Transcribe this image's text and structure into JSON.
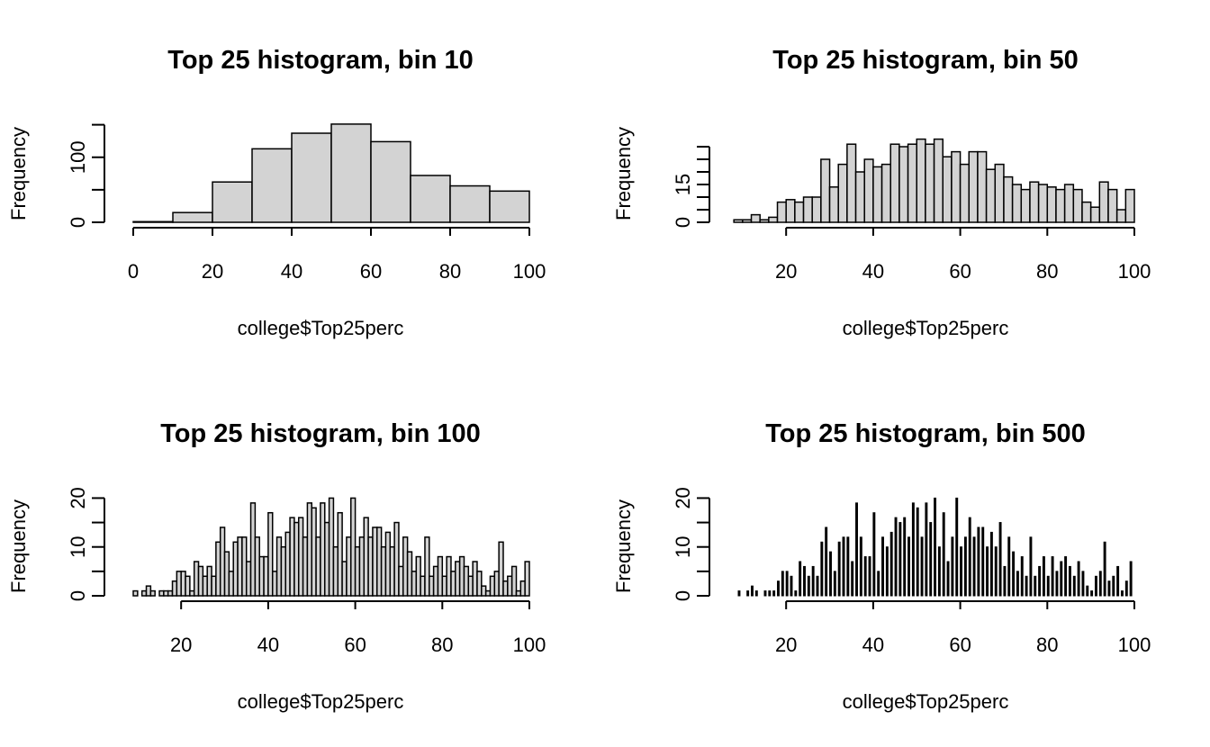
{
  "chart_data": [
    {
      "type": "bar",
      "title": "Top 25 histogram, bin 10",
      "xlabel": "college$Top25perc",
      "ylabel": "Frequency",
      "xlim": [
        0,
        100
      ],
      "ylim": [
        0,
        155
      ],
      "xticks": [
        0,
        20,
        40,
        60,
        80,
        100
      ],
      "yticks": [
        0,
        100
      ],
      "yminor": [
        50,
        150
      ],
      "bins": [
        {
          "x0": 0,
          "x1": 10,
          "count": 1
        },
        {
          "x0": 10,
          "x1": 20,
          "count": 15
        },
        {
          "x0": 20,
          "x1": 30,
          "count": 62
        },
        {
          "x0": 30,
          "x1": 40,
          "count": 113
        },
        {
          "x0": 40,
          "x1": 50,
          "count": 137
        },
        {
          "x0": 50,
          "x1": 60,
          "count": 151
        },
        {
          "x0": 60,
          "x1": 70,
          "count": 124
        },
        {
          "x0": 70,
          "x1": 80,
          "count": 72
        },
        {
          "x0": 80,
          "x1": 90,
          "count": 56
        },
        {
          "x0": 90,
          "x1": 100,
          "count": 48
        }
      ]
    },
    {
      "type": "bar",
      "title": "Top 25 histogram, bin 50",
      "xlabel": "college$Top25perc",
      "ylabel": "Frequency",
      "xlim": [
        9,
        100
      ],
      "ylim": [
        0,
        40
      ],
      "xticks": [
        20,
        40,
        60,
        80,
        100
      ],
      "yticks": [
        0,
        15
      ],
      "yminor": [
        5,
        10,
        20,
        25,
        30
      ],
      "bins": [
        {
          "x0": 8,
          "x1": 10,
          "count": 1
        },
        {
          "x0": 10,
          "x1": 12,
          "count": 1
        },
        {
          "x0": 12,
          "x1": 14,
          "count": 3
        },
        {
          "x0": 14,
          "x1": 16,
          "count": 1
        },
        {
          "x0": 16,
          "x1": 18,
          "count": 2
        },
        {
          "x0": 18,
          "x1": 20,
          "count": 8
        },
        {
          "x0": 20,
          "x1": 22,
          "count": 9
        },
        {
          "x0": 22,
          "x1": 24,
          "count": 8
        },
        {
          "x0": 24,
          "x1": 26,
          "count": 10
        },
        {
          "x0": 26,
          "x1": 28,
          "count": 10
        },
        {
          "x0": 28,
          "x1": 30,
          "count": 25
        },
        {
          "x0": 30,
          "x1": 32,
          "count": 14
        },
        {
          "x0": 32,
          "x1": 34,
          "count": 23
        },
        {
          "x0": 34,
          "x1": 36,
          "count": 31
        },
        {
          "x0": 36,
          "x1": 38,
          "count": 20
        },
        {
          "x0": 38,
          "x1": 40,
          "count": 25
        },
        {
          "x0": 40,
          "x1": 42,
          "count": 22
        },
        {
          "x0": 42,
          "x1": 44,
          "count": 23
        },
        {
          "x0": 44,
          "x1": 46,
          "count": 31
        },
        {
          "x0": 46,
          "x1": 48,
          "count": 30
        },
        {
          "x0": 48,
          "x1": 50,
          "count": 31
        },
        {
          "x0": 50,
          "x1": 52,
          "count": 33
        },
        {
          "x0": 52,
          "x1": 54,
          "count": 31
        },
        {
          "x0": 54,
          "x1": 56,
          "count": 33
        },
        {
          "x0": 56,
          "x1": 58,
          "count": 26
        },
        {
          "x0": 58,
          "x1": 60,
          "count": 28
        },
        {
          "x0": 60,
          "x1": 62,
          "count": 23
        },
        {
          "x0": 62,
          "x1": 64,
          "count": 28
        },
        {
          "x0": 64,
          "x1": 66,
          "count": 28
        },
        {
          "x0": 66,
          "x1": 68,
          "count": 21
        },
        {
          "x0": 68,
          "x1": 70,
          "count": 23
        },
        {
          "x0": 70,
          "x1": 72,
          "count": 18
        },
        {
          "x0": 72,
          "x1": 74,
          "count": 15
        },
        {
          "x0": 74,
          "x1": 76,
          "count": 13
        },
        {
          "x0": 76,
          "x1": 78,
          "count": 16
        },
        {
          "x0": 78,
          "x1": 80,
          "count": 15
        },
        {
          "x0": 80,
          "x1": 82,
          "count": 14
        },
        {
          "x0": 82,
          "x1": 84,
          "count": 13
        },
        {
          "x0": 84,
          "x1": 86,
          "count": 15
        },
        {
          "x0": 86,
          "x1": 88,
          "count": 13
        },
        {
          "x0": 88,
          "x1": 90,
          "count": 8
        },
        {
          "x0": 90,
          "x1": 92,
          "count": 6
        },
        {
          "x0": 92,
          "x1": 94,
          "count": 16
        },
        {
          "x0": 94,
          "x1": 96,
          "count": 13
        },
        {
          "x0": 96,
          "x1": 98,
          "count": 5
        },
        {
          "x0": 98,
          "x1": 100,
          "count": 13
        }
      ]
    },
    {
      "type": "bar",
      "title": "Top 25 histogram, bin 100",
      "xlabel": "college$Top25perc",
      "ylabel": "Frequency",
      "xlim": [
        9,
        100
      ],
      "ylim": [
        0,
        21
      ],
      "xticks": [
        20,
        40,
        60,
        80,
        100
      ],
      "yticks": [
        0,
        10,
        20
      ],
      "yminor": [
        5,
        15
      ],
      "bins": [
        {
          "x0": 9,
          "x1": 10,
          "count": 1
        },
        {
          "x0": 10,
          "x1": 11,
          "count": 0
        },
        {
          "x0": 11,
          "x1": 12,
          "count": 1
        },
        {
          "x0": 12,
          "x1": 13,
          "count": 2
        },
        {
          "x0": 13,
          "x1": 14,
          "count": 1
        },
        {
          "x0": 14,
          "x1": 15,
          "count": 0
        },
        {
          "x0": 15,
          "x1": 16,
          "count": 1
        },
        {
          "x0": 16,
          "x1": 17,
          "count": 1
        },
        {
          "x0": 17,
          "x1": 18,
          "count": 1
        },
        {
          "x0": 18,
          "x1": 19,
          "count": 3
        },
        {
          "x0": 19,
          "x1": 20,
          "count": 5
        },
        {
          "x0": 20,
          "x1": 21,
          "count": 5
        },
        {
          "x0": 21,
          "x1": 22,
          "count": 4
        },
        {
          "x0": 22,
          "x1": 23,
          "count": 1
        },
        {
          "x0": 23,
          "x1": 24,
          "count": 7
        },
        {
          "x0": 24,
          "x1": 25,
          "count": 6
        },
        {
          "x0": 25,
          "x1": 26,
          "count": 4
        },
        {
          "x0": 26,
          "x1": 27,
          "count": 6
        },
        {
          "x0": 27,
          "x1": 28,
          "count": 4
        },
        {
          "x0": 28,
          "x1": 29,
          "count": 11
        },
        {
          "x0": 29,
          "x1": 30,
          "count": 14
        },
        {
          "x0": 30,
          "x1": 31,
          "count": 9
        },
        {
          "x0": 31,
          "x1": 32,
          "count": 5
        },
        {
          "x0": 32,
          "x1": 33,
          "count": 11
        },
        {
          "x0": 33,
          "x1": 34,
          "count": 12
        },
        {
          "x0": 34,
          "x1": 35,
          "count": 12
        },
        {
          "x0": 35,
          "x1": 36,
          "count": 7
        },
        {
          "x0": 36,
          "x1": 37,
          "count": 19
        },
        {
          "x0": 37,
          "x1": 38,
          "count": 12
        },
        {
          "x0": 38,
          "x1": 39,
          "count": 8
        },
        {
          "x0": 39,
          "x1": 40,
          "count": 8
        },
        {
          "x0": 40,
          "x1": 41,
          "count": 17
        },
        {
          "x0": 41,
          "x1": 42,
          "count": 5
        },
        {
          "x0": 42,
          "x1": 43,
          "count": 12
        },
        {
          "x0": 43,
          "x1": 44,
          "count": 10
        },
        {
          "x0": 44,
          "x1": 45,
          "count": 13
        },
        {
          "x0": 45,
          "x1": 46,
          "count": 16
        },
        {
          "x0": 46,
          "x1": 47,
          "count": 15
        },
        {
          "x0": 47,
          "x1": 48,
          "count": 16
        },
        {
          "x0": 48,
          "x1": 49,
          "count": 12
        },
        {
          "x0": 49,
          "x1": 50,
          "count": 19
        },
        {
          "x0": 50,
          "x1": 51,
          "count": 18
        },
        {
          "x0": 51,
          "x1": 52,
          "count": 12
        },
        {
          "x0": 52,
          "x1": 53,
          "count": 19
        },
        {
          "x0": 53,
          "x1": 54,
          "count": 15
        },
        {
          "x0": 54,
          "x1": 55,
          "count": 20
        },
        {
          "x0": 55,
          "x1": 56,
          "count": 10
        },
        {
          "x0": 56,
          "x1": 57,
          "count": 17
        },
        {
          "x0": 57,
          "x1": 58,
          "count": 7
        },
        {
          "x0": 58,
          "x1": 59,
          "count": 12
        },
        {
          "x0": 59,
          "x1": 60,
          "count": 20
        },
        {
          "x0": 60,
          "x1": 61,
          "count": 10
        },
        {
          "x0": 61,
          "x1": 62,
          "count": 12
        },
        {
          "x0": 62,
          "x1": 63,
          "count": 16
        },
        {
          "x0": 63,
          "x1": 64,
          "count": 12
        },
        {
          "x0": 64,
          "x1": 65,
          "count": 14
        },
        {
          "x0": 65,
          "x1": 66,
          "count": 14
        },
        {
          "x0": 66,
          "x1": 67,
          "count": 10
        },
        {
          "x0": 67,
          "x1": 68,
          "count": 13
        },
        {
          "x0": 68,
          "x1": 69,
          "count": 10
        },
        {
          "x0": 69,
          "x1": 70,
          "count": 15
        },
        {
          "x0": 70,
          "x1": 71,
          "count": 6
        },
        {
          "x0": 71,
          "x1": 72,
          "count": 12
        },
        {
          "x0": 72,
          "x1": 73,
          "count": 9
        },
        {
          "x0": 73,
          "x1": 74,
          "count": 5
        },
        {
          "x0": 74,
          "x1": 75,
          "count": 8
        },
        {
          "x0": 75,
          "x1": 76,
          "count": 4
        },
        {
          "x0": 76,
          "x1": 77,
          "count": 12
        },
        {
          "x0": 77,
          "x1": 78,
          "count": 4
        },
        {
          "x0": 78,
          "x1": 79,
          "count": 6
        },
        {
          "x0": 79,
          "x1": 80,
          "count": 8
        },
        {
          "x0": 80,
          "x1": 81,
          "count": 4
        },
        {
          "x0": 81,
          "x1": 82,
          "count": 8
        },
        {
          "x0": 82,
          "x1": 83,
          "count": 5
        },
        {
          "x0": 83,
          "x1": 84,
          "count": 7
        },
        {
          "x0": 84,
          "x1": 85,
          "count": 8
        },
        {
          "x0": 85,
          "x1": 86,
          "count": 6
        },
        {
          "x0": 86,
          "x1": 87,
          "count": 4
        },
        {
          "x0": 87,
          "x1": 88,
          "count": 7
        },
        {
          "x0": 88,
          "x1": 89,
          "count": 5
        },
        {
          "x0": 89,
          "x1": 90,
          "count": 2
        },
        {
          "x0": 90,
          "x1": 91,
          "count": 1
        },
        {
          "x0": 91,
          "x1": 92,
          "count": 4
        },
        {
          "x0": 92,
          "x1": 93,
          "count": 5
        },
        {
          "x0": 93,
          "x1": 94,
          "count": 11
        },
        {
          "x0": 94,
          "x1": 95,
          "count": 3
        },
        {
          "x0": 95,
          "x1": 96,
          "count": 4
        },
        {
          "x0": 96,
          "x1": 97,
          "count": 6
        },
        {
          "x0": 97,
          "x1": 98,
          "count": 1
        },
        {
          "x0": 98,
          "x1": 99,
          "count": 3
        },
        {
          "x0": 99,
          "x1": 100,
          "count": 7
        }
      ]
    },
    {
      "type": "bar",
      "title": "Top 25 histogram, bin 500",
      "xlabel": "college$Top25perc",
      "ylabel": "Frequency",
      "xlim": [
        9,
        100
      ],
      "ylim": [
        0,
        21
      ],
      "xticks": [
        20,
        40,
        60,
        80,
        100
      ],
      "yticks": [
        0,
        10,
        20
      ],
      "yminor": [
        5,
        15
      ],
      "bins_from": 2,
      "bar_width": 0.4
    }
  ]
}
